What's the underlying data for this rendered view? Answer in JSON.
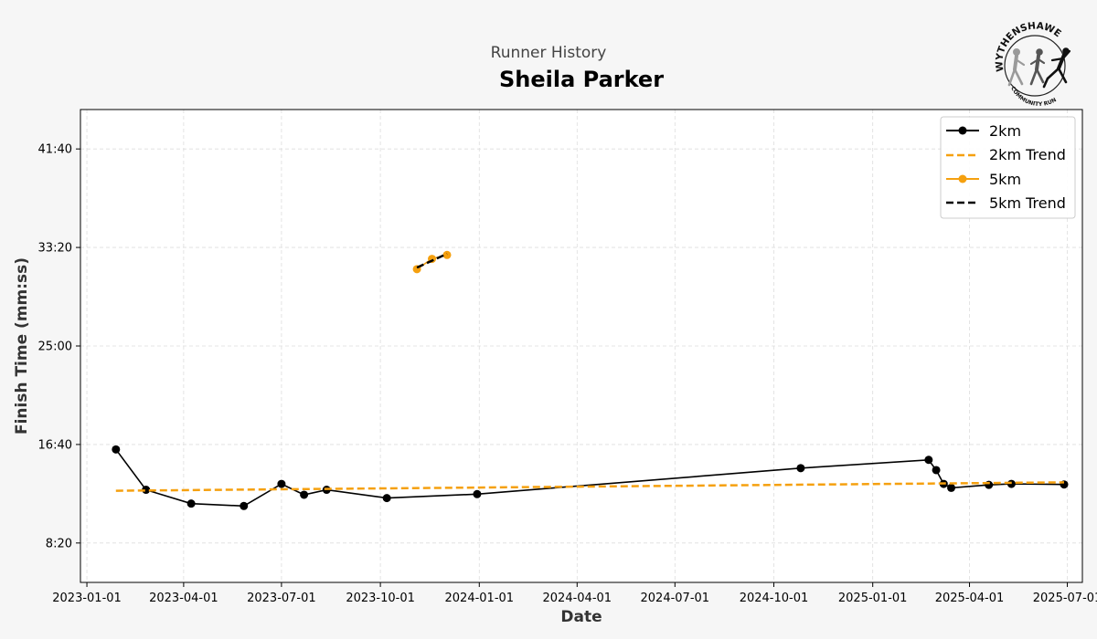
{
  "header": {
    "subtitle": "Runner History",
    "title": "Sheila Parker"
  },
  "logo": {
    "top_text": "WYTHENSHAWE",
    "bottom_text": "COMMUNITY RUN"
  },
  "colors": {
    "series_2km": "#000000",
    "series_5km": "#f5a00f",
    "trend_2km": "#f5a00f",
    "trend_5km": "#000000",
    "grid": "#dddddd"
  },
  "chart_data": {
    "type": "line",
    "title": "Sheila Parker",
    "subtitle": "Runner History",
    "xlabel": "Date",
    "ylabel": "Finish Time (mm:ss)",
    "x_range": [
      "2022-12-26",
      "2025-07-15"
    ],
    "y_range_seconds": [
      300,
      2700
    ],
    "x_ticks": [
      "2023-01-01",
      "2023-04-01",
      "2023-07-01",
      "2023-10-01",
      "2024-01-01",
      "2024-04-01",
      "2024-07-01",
      "2024-10-01",
      "2025-01-01",
      "2025-04-01",
      "2025-07-01"
    ],
    "y_ticks": [
      {
        "label": "8:20",
        "seconds": 500
      },
      {
        "label": "16:40",
        "seconds": 1000
      },
      {
        "label": "25:00",
        "seconds": 1500
      },
      {
        "label": "33:20",
        "seconds": 2000
      },
      {
        "label": "41:40",
        "seconds": 2500
      }
    ],
    "grid": true,
    "legend_position": "top-right",
    "series": [
      {
        "name": "2km",
        "style": "line-marker",
        "color": "#000000",
        "points": [
          {
            "date": "2023-01-28",
            "seconds": 975
          },
          {
            "date": "2023-02-25",
            "seconds": 770
          },
          {
            "date": "2023-04-08",
            "seconds": 700
          },
          {
            "date": "2023-05-27",
            "seconds": 688
          },
          {
            "date": "2023-07-01",
            "seconds": 800
          },
          {
            "date": "2023-07-22",
            "seconds": 745
          },
          {
            "date": "2023-08-12",
            "seconds": 770
          },
          {
            "date": "2023-10-07",
            "seconds": 728
          },
          {
            "date": "2023-12-30",
            "seconds": 748
          },
          {
            "date": "2024-10-26",
            "seconds": 880
          },
          {
            "date": "2025-02-22",
            "seconds": 922
          },
          {
            "date": "2025-03-01",
            "seconds": 870
          },
          {
            "date": "2025-03-08",
            "seconds": 800
          },
          {
            "date": "2025-03-15",
            "seconds": 780
          },
          {
            "date": "2025-04-19",
            "seconds": 795
          },
          {
            "date": "2025-05-10",
            "seconds": 800
          },
          {
            "date": "2025-06-28",
            "seconds": 797
          }
        ]
      },
      {
        "name": "2km Trend",
        "style": "dashed",
        "color": "#f5a00f",
        "points": [
          {
            "date": "2023-01-28",
            "seconds": 765
          },
          {
            "date": "2025-06-28",
            "seconds": 808
          }
        ]
      },
      {
        "name": "5km",
        "style": "line-marker",
        "color": "#f5a00f",
        "points": [
          {
            "date": "2023-11-04",
            "seconds": 1890
          },
          {
            "date": "2023-11-18",
            "seconds": 1942
          },
          {
            "date": "2023-12-02",
            "seconds": 1962
          }
        ]
      },
      {
        "name": "5km Trend",
        "style": "dashed",
        "color": "#000000",
        "points": [
          {
            "date": "2023-11-04",
            "seconds": 1898
          },
          {
            "date": "2023-12-02",
            "seconds": 1968
          }
        ]
      }
    ]
  }
}
